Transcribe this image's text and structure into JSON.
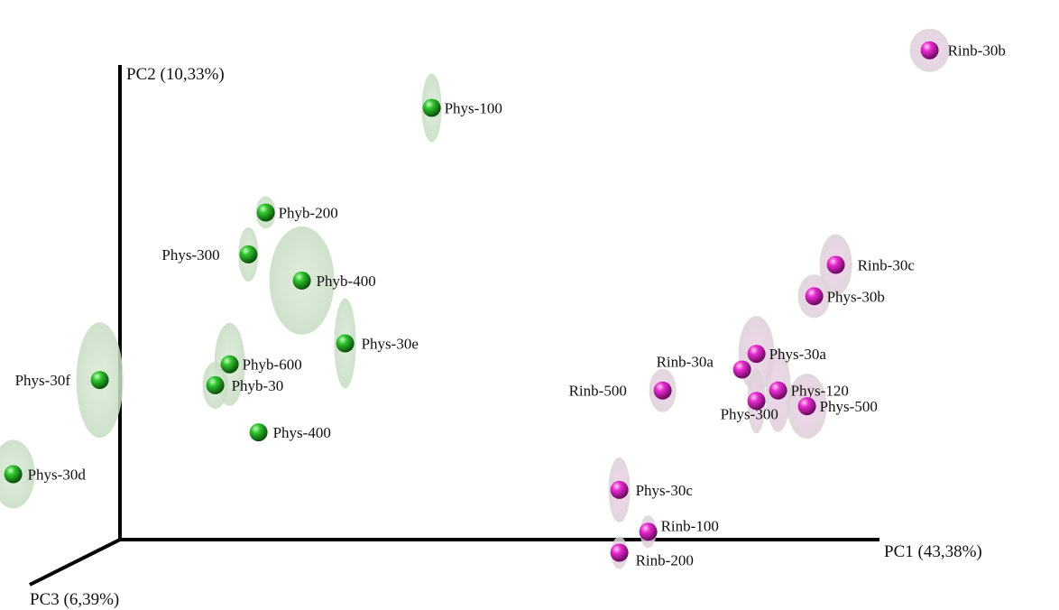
{
  "chart_data": {
    "type": "scatter",
    "subtype": "3d-pca",
    "title": "",
    "axes": {
      "x": {
        "label": "PC1 (43,38%)"
      },
      "y": {
        "label": "PC2 (10,33%)"
      },
      "z": {
        "label": "PC3 (6,39%)"
      }
    },
    "grid": false,
    "legend": "none",
    "colors": {
      "group_green": "#1a9e1a",
      "group_magenta": "#e020c8"
    },
    "series": [
      {
        "color_key": "group_green",
        "points": [
          {
            "label": "Phys-100",
            "x": 0.432,
            "y": 0.825
          },
          {
            "label": "Phyb-200",
            "x": 0.202,
            "y": 0.625
          },
          {
            "label": "Phys-300",
            "x": 0.178,
            "y": 0.545
          },
          {
            "label": "Phyb-400",
            "x": 0.252,
            "y": 0.495
          },
          {
            "label": "Phys-30e",
            "x": 0.312,
            "y": 0.375
          },
          {
            "label": "Phyb-600",
            "x": 0.152,
            "y": 0.335
          },
          {
            "label": "Phyb-30",
            "x": 0.132,
            "y": 0.295
          },
          {
            "label": "Phys-400",
            "x": 0.192,
            "y": 0.205
          },
          {
            "label": "Phys-30f",
            "x": -0.028,
            "y": 0.305
          },
          {
            "label": "Phys-30d",
            "x": -0.148,
            "y": 0.125
          }
        ]
      },
      {
        "color_key": "group_magenta",
        "points": [
          {
            "label": "Rinb-30b",
            "x": 1.122,
            "y": 0.935
          },
          {
            "label": "Rinb-30c",
            "x": 0.992,
            "y": 0.525
          },
          {
            "label": "Phys-30b",
            "x": 0.962,
            "y": 0.465
          },
          {
            "label": "Phys-30a",
            "x": 0.882,
            "y": 0.355
          },
          {
            "label": "Rinb-30a",
            "x": 0.862,
            "y": 0.325
          },
          {
            "label": "Phys-120",
            "x": 0.912,
            "y": 0.285
          },
          {
            "label": "Phys-300",
            "x": 0.882,
            "y": 0.265
          },
          {
            "label": "Phys-500",
            "x": 0.952,
            "y": 0.255
          },
          {
            "label": "Rinb-500",
            "x": 0.752,
            "y": 0.285
          },
          {
            "label": "Phys-30c",
            "x": 0.692,
            "y": 0.095
          },
          {
            "label": "Rinb-100",
            "x": 0.732,
            "y": 0.015
          },
          {
            "label": "Rinb-200",
            "x": 0.692,
            "y": -0.025
          }
        ]
      }
    ]
  }
}
